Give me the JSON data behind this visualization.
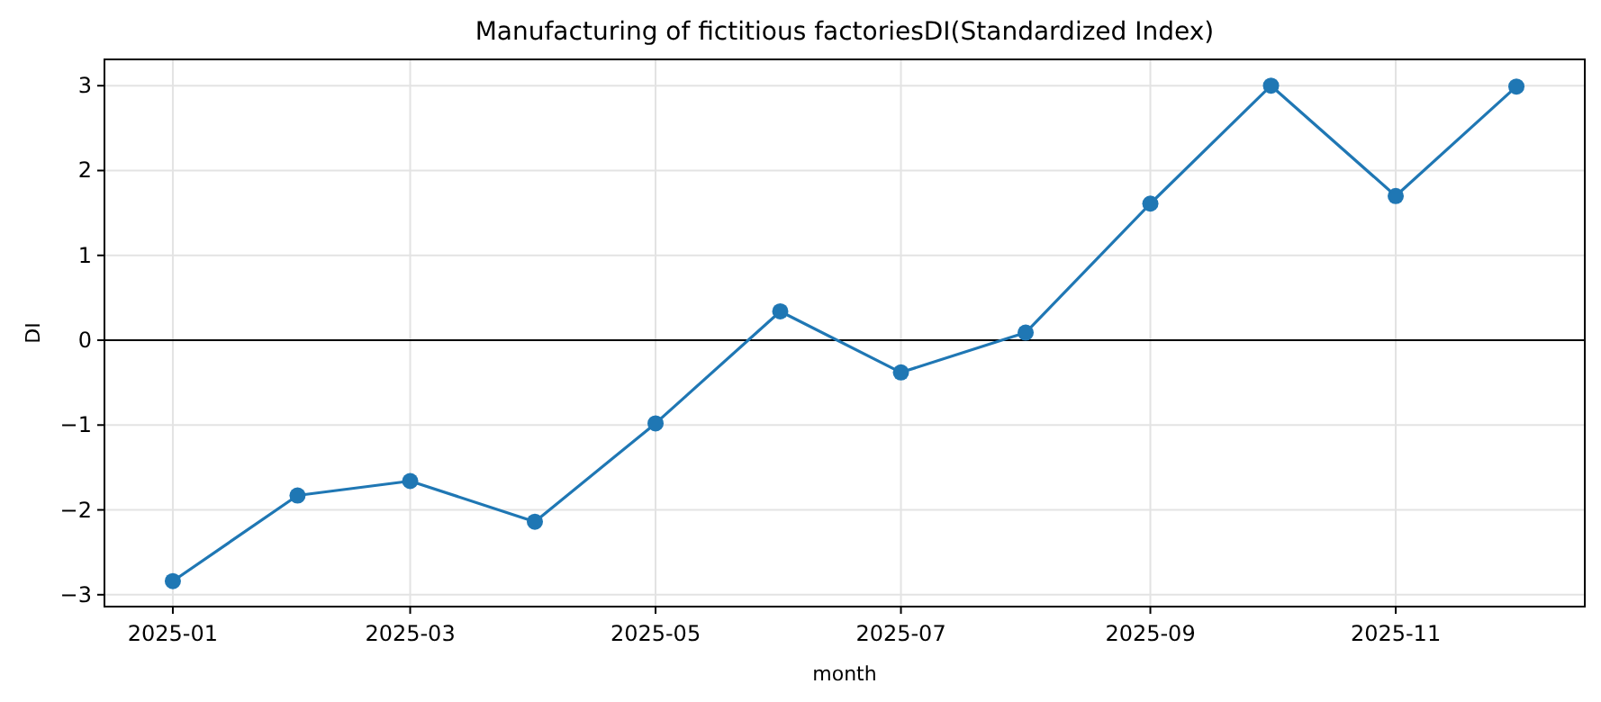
{
  "chart_data": {
    "type": "line",
    "title": "Manufacturing of fictitious factoriesDI(Standardized Index)",
    "xlabel": "month",
    "ylabel": "DI",
    "x": [
      "2025-01",
      "2025-02",
      "2025-03",
      "2025-04",
      "2025-05",
      "2025-06",
      "2025-07",
      "2025-08",
      "2025-09",
      "2025-10",
      "2025-11",
      "2025-12"
    ],
    "series": [
      {
        "color": "#1f77b4",
        "values": [
          -2.84,
          -1.83,
          -1.66,
          -2.14,
          -0.98,
          0.34,
          -0.38,
          0.09,
          1.61,
          3.0,
          1.7,
          2.99
        ]
      }
    ],
    "xlim": [
      "2024-12-15",
      "2025-12-18"
    ],
    "xticks": [
      {
        "value": "2025-01",
        "label": "2025-01"
      },
      {
        "value": "2025-03",
        "label": "2025-03"
      },
      {
        "value": "2025-05",
        "label": "2025-05"
      },
      {
        "value": "2025-07",
        "label": "2025-07"
      },
      {
        "value": "2025-09",
        "label": "2025-09"
      },
      {
        "value": "2025-11",
        "label": "2025-11"
      }
    ],
    "ylim": [
      -3.14,
      3.31
    ],
    "yticks": [
      {
        "value": -3,
        "label": "−3"
      },
      {
        "value": -2,
        "label": "−2"
      },
      {
        "value": -1,
        "label": "−1"
      },
      0,
      1,
      2,
      3
    ],
    "ref_lines": [
      {
        "axis": "y",
        "value": 0,
        "color": "#000000"
      }
    ],
    "grid": true,
    "marker": "circle",
    "line_style": "solid"
  }
}
